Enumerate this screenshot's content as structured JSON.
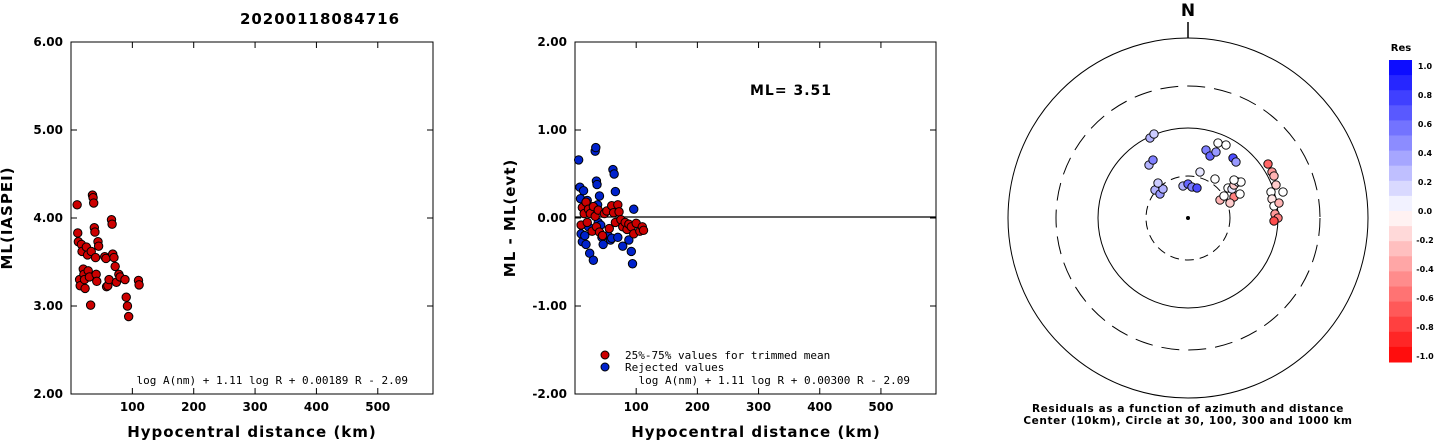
{
  "header": {
    "event_id": "20200118084716"
  },
  "chart_data": [
    {
      "type": "scatter",
      "xlabel": "Hypocentral distance (km)",
      "ylabel": "ML(IASPEI)",
      "xlim": [
        0,
        590
      ],
      "ylim": [
        2.0,
        6.0
      ],
      "xticks": [
        "100",
        "200",
        "300",
        "400",
        "500"
      ],
      "yticks": [
        "2.00",
        "3.00",
        "4.00",
        "5.00",
        "6.00"
      ],
      "formula": "log A(nm) + 1.11 log R + 0.00189 R - 2.09",
      "points": [
        [
          10,
          4.15
        ],
        [
          11,
          3.83
        ],
        [
          12,
          3.73
        ],
        [
          14,
          3.3
        ],
        [
          15,
          3.23
        ],
        [
          17,
          3.7
        ],
        [
          18,
          3.62
        ],
        [
          20,
          3.42
        ],
        [
          21,
          3.36
        ],
        [
          22,
          3.3
        ],
        [
          23,
          3.2
        ],
        [
          25,
          3.67
        ],
        [
          27,
          3.58
        ],
        [
          28,
          3.4
        ],
        [
          30,
          3.33
        ],
        [
          32,
          3.01
        ],
        [
          33,
          3.62
        ],
        [
          35,
          4.26
        ],
        [
          36,
          4.23
        ],
        [
          37,
          4.17
        ],
        [
          38,
          3.89
        ],
        [
          39,
          3.84
        ],
        [
          40,
          3.55
        ],
        [
          41,
          3.36
        ],
        [
          42,
          3.28
        ],
        [
          44,
          3.73
        ],
        [
          45,
          3.68
        ],
        [
          55,
          3.56
        ],
        [
          57,
          3.54
        ],
        [
          58,
          3.22
        ],
        [
          60,
          3.23
        ],
        [
          62,
          3.3
        ],
        [
          66,
          3.98
        ],
        [
          67,
          3.93
        ],
        [
          68,
          3.59
        ],
        [
          70,
          3.55
        ],
        [
          72,
          3.45
        ],
        [
          74,
          3.27
        ],
        [
          78,
          3.36
        ],
        [
          80,
          3.33
        ],
        [
          88,
          3.3
        ],
        [
          90,
          3.1
        ],
        [
          92,
          3.0
        ],
        [
          94,
          2.88
        ],
        [
          110,
          3.29
        ],
        [
          111,
          3.24
        ]
      ]
    },
    {
      "type": "scatter",
      "xlabel": "Hypocentral distance (km)",
      "ylabel": "ML - ML(evt)",
      "xlim": [
        0,
        590
      ],
      "ylim": [
        -2.0,
        2.0
      ],
      "xticks": [
        "100",
        "200",
        "300",
        "400",
        "500"
      ],
      "yticks": [
        "-2.00",
        "-1.00",
        "0.00",
        "1.00",
        "2.00"
      ],
      "annotation": "ML= 3.51",
      "formula": "log A(nm) + 1.11 log R + 0.00300 R - 2.09",
      "legend": [
        {
          "label": "25%-75% values for trimmed mean",
          "color": "#cc0000"
        },
        {
          "label": "Rejected values",
          "color": "#0022cc"
        }
      ],
      "trimmed": [
        [
          10,
          -0.08
        ],
        [
          12,
          0.12
        ],
        [
          15,
          0.05
        ],
        [
          18,
          0.18
        ],
        [
          20,
          -0.05
        ],
        [
          22,
          0.1
        ],
        [
          25,
          0.05
        ],
        [
          28,
          -0.15
        ],
        [
          30,
          0.13
        ],
        [
          33,
          0.02
        ],
        [
          35,
          -0.1
        ],
        [
          38,
          0.09
        ],
        [
          40,
          -0.16
        ],
        [
          45,
          -0.2
        ],
        [
          48,
          0.05
        ],
        [
          52,
          0.08
        ],
        [
          56,
          -0.12
        ],
        [
          60,
          0.14
        ],
        [
          63,
          0.06
        ],
        [
          66,
          -0.05
        ],
        [
          70,
          0.15
        ],
        [
          72,
          0.07
        ],
        [
          75,
          -0.02
        ],
        [
          78,
          -0.1
        ],
        [
          82,
          -0.05
        ],
        [
          85,
          -0.13
        ],
        [
          88,
          -0.07
        ],
        [
          92,
          -0.1
        ],
        [
          96,
          -0.18
        ],
        [
          100,
          -0.06
        ],
        [
          106,
          -0.15
        ],
        [
          110,
          -0.1
        ],
        [
          112,
          -0.14
        ]
      ],
      "rejected": [
        [
          6,
          0.66
        ],
        [
          8,
          0.35
        ],
        [
          9,
          0.22
        ],
        [
          10,
          -0.18
        ],
        [
          12,
          -0.27
        ],
        [
          14,
          0.31
        ],
        [
          16,
          -0.2
        ],
        [
          18,
          -0.3
        ],
        [
          20,
          0.2
        ],
        [
          22,
          -0.1
        ],
        [
          24,
          -0.4
        ],
        [
          30,
          -0.48
        ],
        [
          33,
          0.76
        ],
        [
          34,
          0.8
        ],
        [
          35,
          0.42
        ],
        [
          36,
          0.38
        ],
        [
          37,
          0.15
        ],
        [
          38,
          -0.05
        ],
        [
          40,
          0.25
        ],
        [
          42,
          -0.08
        ],
        [
          44,
          -0.22
        ],
        [
          46,
          -0.3
        ],
        [
          54,
          -0.2
        ],
        [
          58,
          -0.25
        ],
        [
          60,
          -0.23
        ],
        [
          62,
          0.55
        ],
        [
          64,
          0.5
        ],
        [
          66,
          0.3
        ],
        [
          70,
          -0.22
        ],
        [
          78,
          -0.32
        ],
        [
          88,
          -0.25
        ],
        [
          92,
          -0.38
        ],
        [
          94,
          -0.52
        ],
        [
          96,
          0.1
        ]
      ]
    },
    {
      "type": "polar",
      "north_label": "N",
      "caption_line1": "Residuals as a function of azimuth and distance",
      "caption_line2": "Center (10km), Circle at 30, 100, 300 and 1000 km",
      "colorbar_title": "Res",
      "colorbar_labels": [
        "1.0",
        "0.8",
        "0.6",
        "0.4",
        "0.2",
        "0.0",
        "-0.2",
        "-0.4",
        "-0.6",
        "-0.8",
        "-1.0"
      ],
      "points": [
        [
          -39,
          53,
          0.3
        ],
        [
          -35,
          58,
          0.5
        ],
        [
          -38,
          80,
          0.3
        ],
        [
          -34,
          84,
          0.2
        ],
        [
          -33,
          28,
          0.3
        ],
        [
          -28,
          24,
          0.4
        ],
        [
          -25,
          29,
          0.3
        ],
        [
          -30,
          35,
          0.2
        ],
        [
          -5,
          32,
          0.3
        ],
        [
          0,
          34,
          0.6
        ],
        [
          4,
          31,
          0.5
        ],
        [
          9,
          30,
          0.7
        ],
        [
          12,
          46,
          0.1
        ],
        [
          18,
          68,
          0.5
        ],
        [
          22,
          62,
          0.6
        ],
        [
          28,
          66,
          0.4
        ],
        [
          30,
          75,
          0.0
        ],
        [
          38,
          73,
          0.0
        ],
        [
          45,
          60,
          0.7
        ],
        [
          48,
          56,
          0.4
        ],
        [
          27,
          39,
          0.0
        ],
        [
          32,
          18,
          -0.3
        ],
        [
          36,
          22,
          0.0
        ],
        [
          40,
          30,
          0.0
        ],
        [
          44,
          29,
          0.1
        ],
        [
          46,
          33,
          -0.2
        ],
        [
          50,
          36,
          0.1
        ],
        [
          46,
          21,
          -0.5
        ],
        [
          42,
          15,
          -0.2
        ],
        [
          52,
          24,
          0.0
        ],
        [
          53,
          36,
          0.0
        ],
        [
          46,
          38,
          0.0
        ],
        [
          80,
          54,
          -0.6
        ],
        [
          84,
          46,
          -0.4
        ],
        [
          86,
          42,
          -0.3
        ],
        [
          88,
          33,
          -0.2
        ],
        [
          83,
          26,
          0.0
        ],
        [
          84,
          19,
          -0.1
        ],
        [
          86,
          12,
          0.0
        ],
        [
          87,
          4,
          -0.4
        ],
        [
          91,
          15,
          -0.3
        ],
        [
          95,
          26,
          0.0
        ],
        [
          90,
          0,
          -0.5
        ],
        [
          86,
          -3,
          -0.7
        ]
      ]
    }
  ]
}
